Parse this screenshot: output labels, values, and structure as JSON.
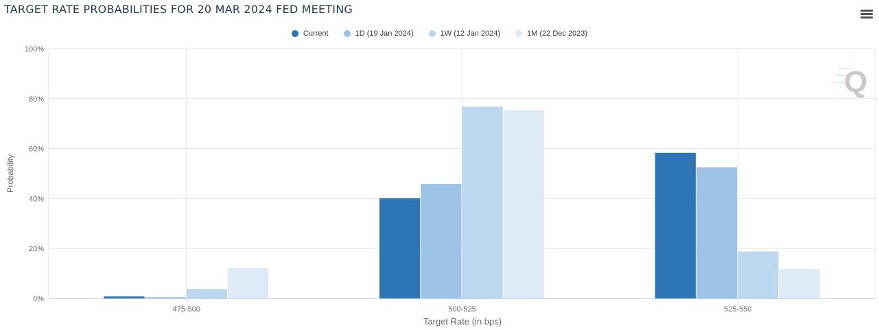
{
  "header": {
    "title": "TARGET RATE PROBABILITIES FOR 20 MAR 2024 FED MEETING",
    "menu_icon": "hamburger-menu-icon",
    "watermark_icon": "q-logo-watermark-icon"
  },
  "chart_data": {
    "type": "bar",
    "title": "TARGET RATE PROBABILITIES FOR 20 MAR 2024 FED MEETING",
    "xlabel": "Target Rate (in bps)",
    "ylabel": "Probability",
    "categories": [
      "475-500",
      "500-525",
      "525-550"
    ],
    "ylim": [
      0,
      100
    ],
    "yticks": [
      "0%",
      "20%",
      "40%",
      "60%",
      "80%",
      "100%"
    ],
    "grid": true,
    "legend_position": "top-center",
    "series": [
      {
        "name": "Current",
        "color": "#2e75b6",
        "values": [
          0.8,
          40.1,
          58.3
        ]
      },
      {
        "name": "1D (19 Jan 2024)",
        "color": "#9dc3e6",
        "values": [
          0.5,
          45.9,
          52.5
        ]
      },
      {
        "name": "1W (12 Jan 2024)",
        "color": "#bdd7ee",
        "values": [
          3.8,
          76.8,
          18.8
        ]
      },
      {
        "name": "1M (22 Dec 2023)",
        "color": "#deebf7",
        "values": [
          12.1,
          75.4,
          11.8
        ]
      }
    ]
  }
}
